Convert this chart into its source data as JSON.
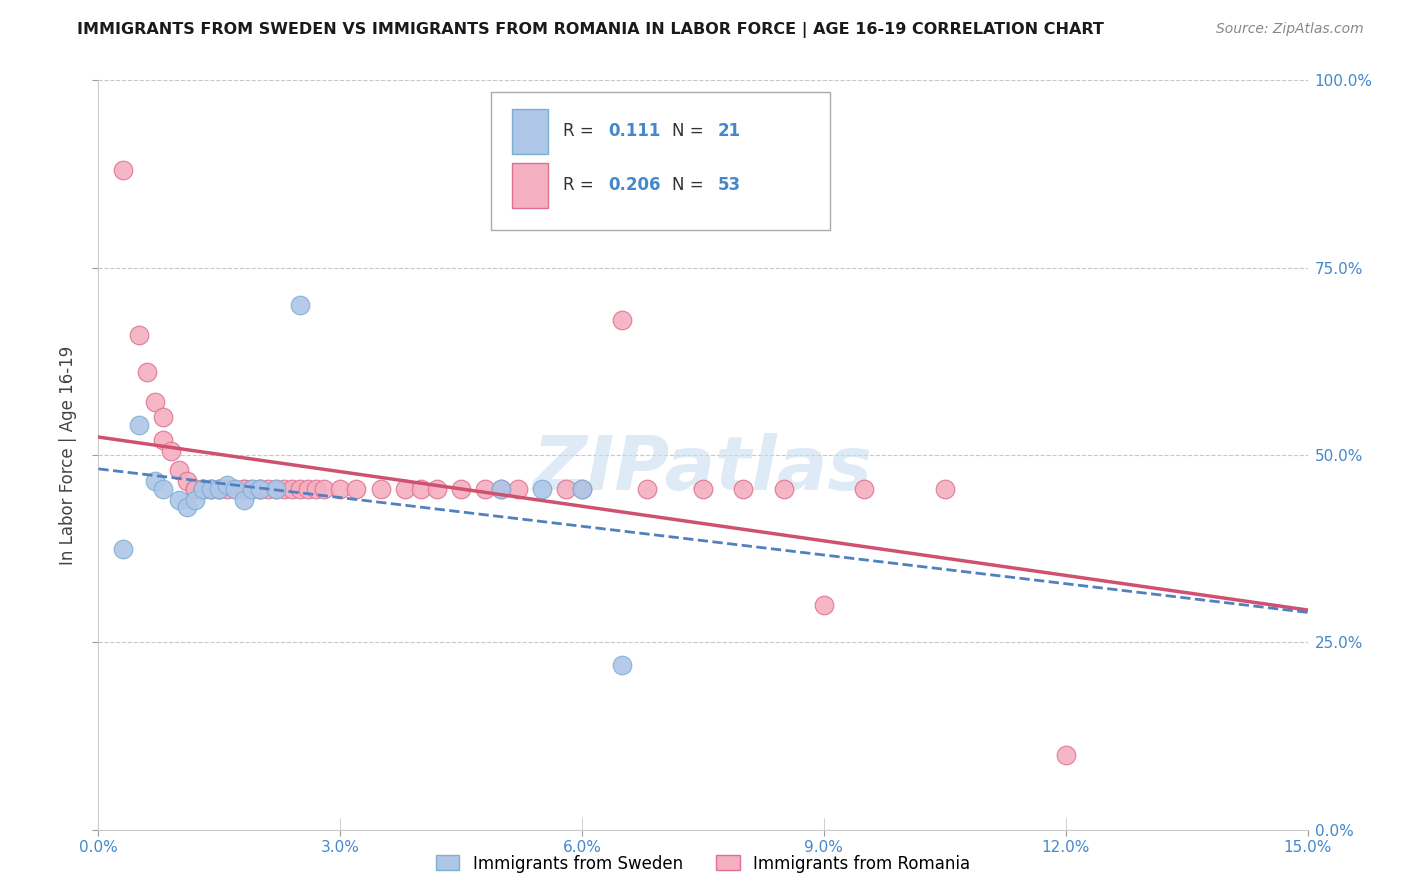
{
  "title": "IMMIGRANTS FROM SWEDEN VS IMMIGRANTS FROM ROMANIA IN LABOR FORCE | AGE 16-19 CORRELATION CHART",
  "source": "Source: ZipAtlas.com",
  "ylabel": "In Labor Force | Age 16-19",
  "ylabel_ticks": [
    "0.0%",
    "25.0%",
    "50.0%",
    "75.0%",
    "100.0%"
  ],
  "ylabel_tick_vals": [
    0.0,
    0.25,
    0.5,
    0.75,
    1.0
  ],
  "xtick_vals": [
    0.0,
    0.03,
    0.06,
    0.09,
    0.12,
    0.15
  ],
  "xtick_labels": [
    "0.0%",
    "3.0%",
    "6.0%",
    "9.0%",
    "12.0%",
    "15.0%"
  ],
  "xmin": 0.0,
  "xmax": 0.15,
  "ymin": 0.0,
  "ymax": 1.0,
  "sweden_color": "#aec6e8",
  "romania_color": "#f4afc0",
  "sweden_edge_color": "#7bafd4",
  "romania_edge_color": "#e07090",
  "sweden_line_color": "#5080c0",
  "romania_line_color": "#d05070",
  "sweden_R": "0.111",
  "sweden_N": "21",
  "romania_R": "0.206",
  "romania_N": "53",
  "sweden_scatter_x": [
    0.003,
    0.005,
    0.007,
    0.008,
    0.009,
    0.01,
    0.011,
    0.012,
    0.013,
    0.014,
    0.015,
    0.016,
    0.017,
    0.018,
    0.02,
    0.025,
    0.028,
    0.05,
    0.052,
    0.055,
    0.06
  ],
  "sweden_scatter_y": [
    0.37,
    0.54,
    0.48,
    0.47,
    0.455,
    0.44,
    0.435,
    0.43,
    0.45,
    0.455,
    0.455,
    0.46,
    0.44,
    0.44,
    0.455,
    0.455,
    0.7,
    0.455,
    0.455,
    0.455,
    0.22
  ],
  "romania_scatter_x": [
    0.003,
    0.005,
    0.006,
    0.007,
    0.008,
    0.008,
    0.009,
    0.01,
    0.01,
    0.011,
    0.012,
    0.012,
    0.013,
    0.013,
    0.014,
    0.015,
    0.015,
    0.016,
    0.017,
    0.018,
    0.018,
    0.019,
    0.02,
    0.02,
    0.021,
    0.022,
    0.023,
    0.024,
    0.025,
    0.026,
    0.027,
    0.028,
    0.03,
    0.032,
    0.034,
    0.036,
    0.04,
    0.042,
    0.045,
    0.048,
    0.05,
    0.055,
    0.06,
    0.065,
    0.07,
    0.075,
    0.08,
    0.085,
    0.09,
    0.095,
    0.1,
    0.11,
    0.12
  ],
  "romania_scatter_y": [
    0.88,
    0.65,
    0.6,
    0.57,
    0.55,
    0.52,
    0.5,
    0.48,
    0.46,
    0.46,
    0.455,
    0.455,
    0.455,
    0.455,
    0.455,
    0.455,
    0.455,
    0.455,
    0.455,
    0.455,
    0.455,
    0.455,
    0.455,
    0.455,
    0.455,
    0.455,
    0.455,
    0.455,
    0.455,
    0.455,
    0.455,
    0.455,
    0.455,
    0.455,
    0.455,
    0.455,
    0.455,
    0.455,
    0.455,
    0.455,
    0.455,
    0.455,
    0.455,
    0.455,
    0.68,
    0.455,
    0.455,
    0.455,
    0.455,
    0.455,
    0.455,
    0.455,
    0.1
  ],
  "watermark": "ZIPatlas",
  "watermark_color": "#c8dff0",
  "legend_sweden_label": "Immigrants from Sweden",
  "legend_romania_label": "Immigrants from Romania"
}
